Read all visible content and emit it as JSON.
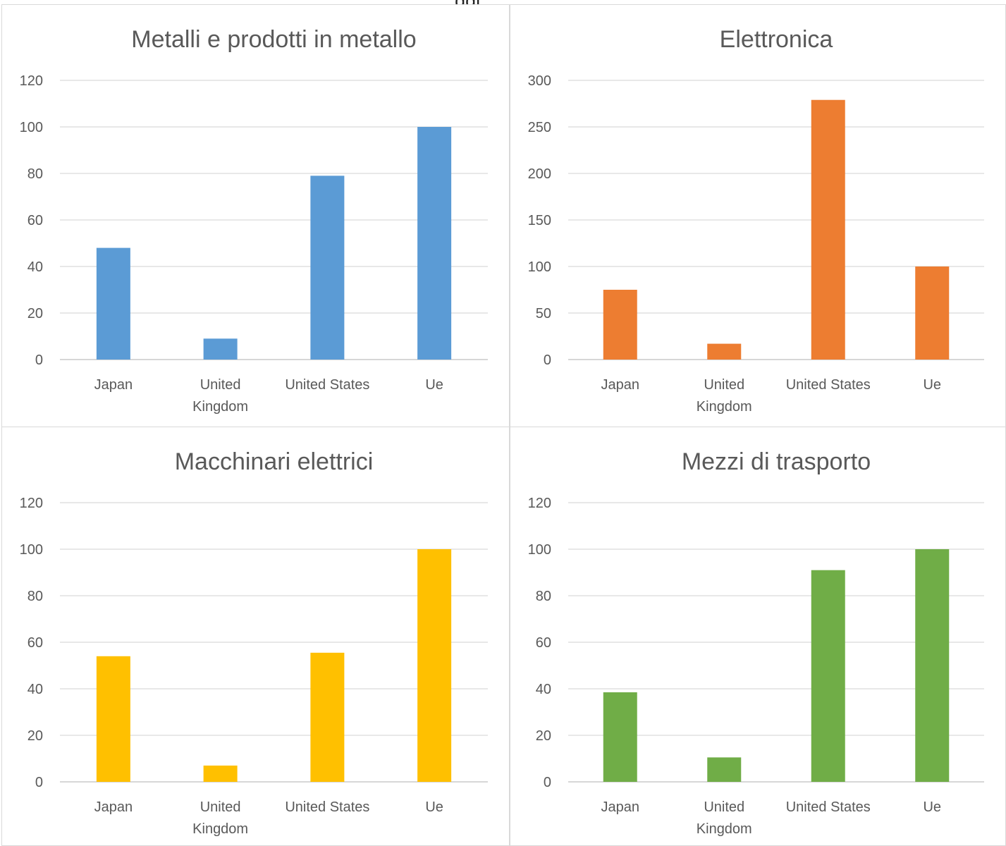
{
  "header_fragment": ", ... ... ... ... ... ... ... ... ... ... ... ... ... ... ... ... ... ... ... ... ... ggi",
  "chart_data": [
    {
      "type": "bar",
      "title": "Metalli e prodotti in metallo",
      "categories": [
        "Japan",
        "United Kingdom",
        "United States",
        "Ue"
      ],
      "category_lines": [
        [
          "Japan"
        ],
        [
          "United",
          "Kingdom"
        ],
        [
          "United States"
        ],
        [
          "Ue"
        ]
      ],
      "series": [
        {
          "values": [
            48,
            9,
            79,
            100
          ],
          "color": "#5b9bd5"
        }
      ],
      "ylim": [
        0,
        120
      ],
      "yticks": [
        0,
        20,
        40,
        60,
        80,
        100,
        120
      ],
      "grid": true,
      "legend": "none"
    },
    {
      "type": "bar",
      "title": "Elettronica",
      "categories": [
        "Japan",
        "United Kingdom",
        "United States",
        "Ue"
      ],
      "category_lines": [
        [
          "Japan"
        ],
        [
          "United",
          "Kingdom"
        ],
        [
          "United States"
        ],
        [
          "Ue"
        ]
      ],
      "series": [
        {
          "values": [
            75,
            17,
            279,
            100
          ],
          "color": "#ed7d31"
        }
      ],
      "ylim": [
        0,
        300
      ],
      "yticks": [
        0,
        50,
        100,
        150,
        200,
        250,
        300
      ],
      "grid": true,
      "legend": "none"
    },
    {
      "type": "bar",
      "title": "Macchinari elettrici",
      "categories": [
        "Japan",
        "United Kingdom",
        "United States",
        "Ue"
      ],
      "category_lines": [
        [
          "Japan"
        ],
        [
          "United",
          "Kingdom"
        ],
        [
          "United States"
        ],
        [
          "Ue"
        ]
      ],
      "series": [
        {
          "values": [
            54,
            7,
            55.5,
            100
          ],
          "color": "#ffc000"
        }
      ],
      "ylim": [
        0,
        120
      ],
      "yticks": [
        0,
        20,
        40,
        60,
        80,
        100,
        120
      ],
      "grid": true,
      "legend": "none"
    },
    {
      "type": "bar",
      "title": "Mezzi di trasporto",
      "categories": [
        "Japan",
        "United Kingdom",
        "United States",
        "Ue"
      ],
      "category_lines": [
        [
          "Japan"
        ],
        [
          "United",
          "Kingdom"
        ],
        [
          "United States"
        ],
        [
          "Ue"
        ]
      ],
      "series": [
        {
          "values": [
            38.5,
            10.5,
            91,
            100
          ],
          "color": "#70ad47"
        }
      ],
      "ylim": [
        0,
        120
      ],
      "yticks": [
        0,
        20,
        40,
        60,
        80,
        100,
        120
      ],
      "grid": true,
      "legend": "none"
    }
  ]
}
